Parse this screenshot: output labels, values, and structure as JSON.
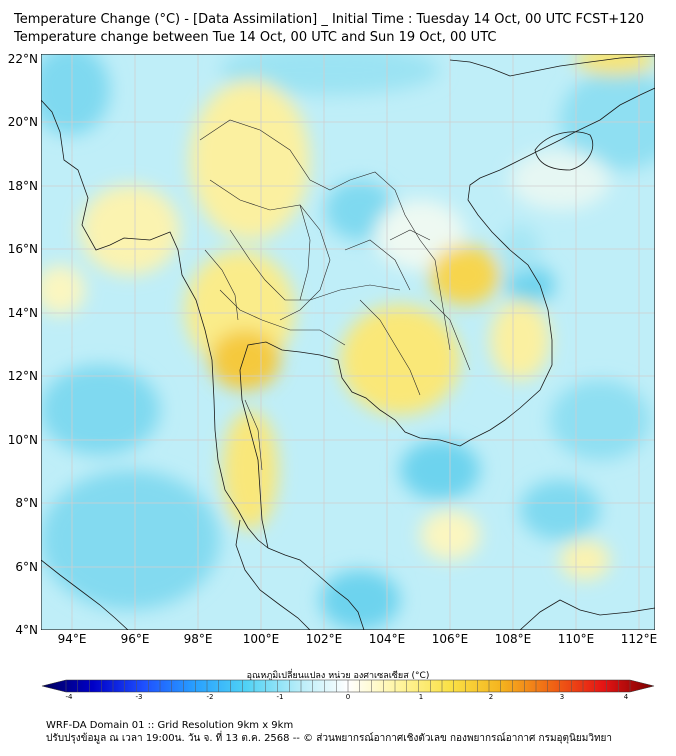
{
  "header": {
    "title_line1": "Temperature Change (°C) - [Data Assimilation] _ Initial Time : Tuesday 14 Oct, 00 UTC FCST+120",
    "title_line2": "Temperature change between Tue 14 Oct, 00 UTC and Sun 19 Oct, 00 UTC"
  },
  "map": {
    "lat_labels": [
      "22°N",
      "20°N",
      "18°N",
      "16°N",
      "14°N",
      "12°N",
      "10°N",
      "8°N",
      "6°N",
      "4°N"
    ],
    "lon_labels": [
      "94°E",
      "96°E",
      "98°E",
      "100°E",
      "102°E",
      "104°E",
      "106°E",
      "108°E",
      "110°E",
      "112°E"
    ],
    "colors": {
      "ocean_cyan": "#7fd9f0",
      "light_cyan": "#c6eef8",
      "pale": "#edf9f4",
      "pale_yellow": "#fbf3a3",
      "yellow": "#f9e15c",
      "orange_yellow": "#f5c73c",
      "coast_line": "#1a1a1a",
      "grid_line": "#cfcfcf"
    }
  },
  "colorbar": {
    "title": "อุณหภูมิเปลี่ยนแปลง หน่วย องศาเซลเซียส (°C)",
    "ticks": [
      "-4",
      "-3",
      "-2",
      "-1",
      "0",
      "1",
      "2",
      "3",
      "4"
    ],
    "stops": [
      "#00005a",
      "#0000c8",
      "#1e50ff",
      "#28a0ff",
      "#50d2f5",
      "#b4ecf8",
      "#ffffff",
      "#fff5a0",
      "#fae146",
      "#f5b41e",
      "#f06414",
      "#e61414",
      "#780000"
    ]
  },
  "footer": {
    "line1": "WRF-DA Domain 01 :: Grid Resolution 9km x 9km",
    "line2": "ปรับปรุงข้อมูล ณ เวลา 19:00น. วัน จ. ที่ 13 ต.ค. 2568 -- © ส่วนพยากรณ์อากาศเชิงตัวเลข กองพยากรณ์อากาศ กรมอุตุนิยมวิทยา"
  }
}
